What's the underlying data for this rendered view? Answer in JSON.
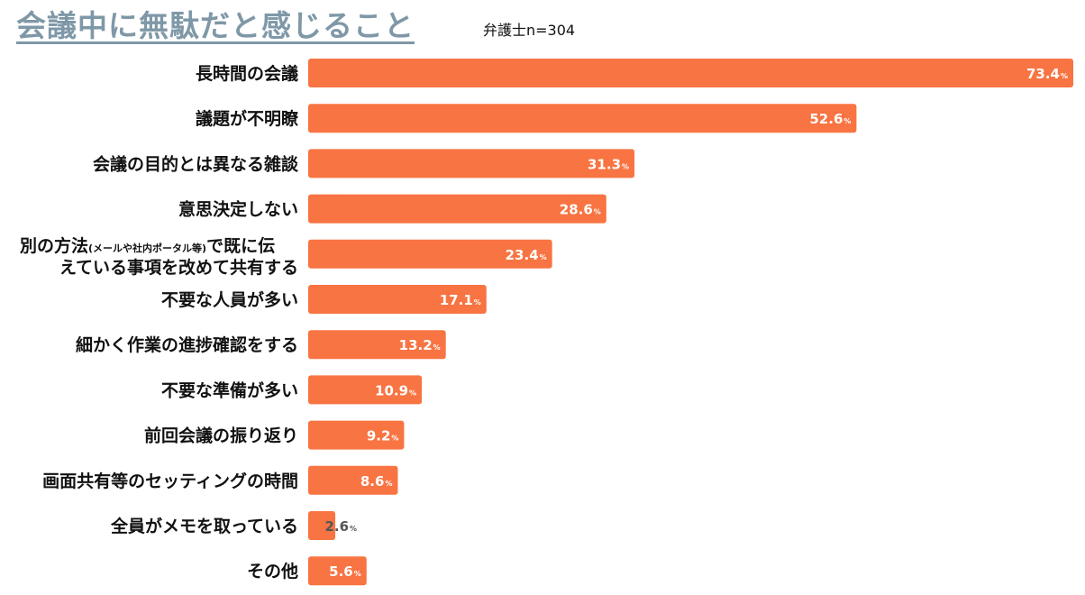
{
  "title": "会議中に無駄だと感じること",
  "subtitle": "弁護士n=304",
  "chart_data": {
    "type": "bar",
    "orientation": "horizontal",
    "categories": [
      "長時間の会議",
      "議題が不明瞭",
      "会議の目的とは異なる雑談",
      "意思決定しない",
      "別の方法(メールや社内ポータル等)で既に伝えている事項を改めて共有する",
      "不要な人員が多い",
      "細かく作業の進捗確認をする",
      "不要な準備が多い",
      "前回会議の振り返り",
      "画面共有等のセッティングの時間",
      "全員がメモを取っている",
      "その他"
    ],
    "values": [
      73.4,
      52.6,
      31.3,
      28.6,
      23.4,
      17.1,
      13.2,
      10.9,
      9.2,
      8.6,
      2.6,
      5.6
    ],
    "value_suffix": "%",
    "bar_color": "#f87442",
    "label_color_inside": "#ffffff",
    "label_color_outside": "#555555",
    "xlim": [
      0,
      75
    ],
    "grid": false,
    "legend": false
  }
}
